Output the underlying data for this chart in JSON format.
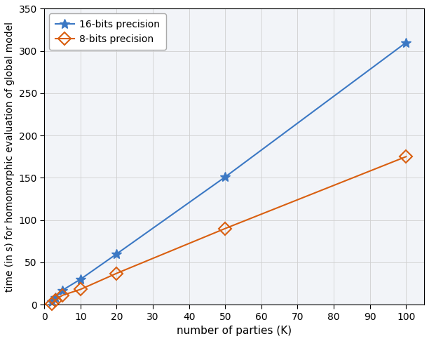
{
  "x": [
    2,
    3,
    5,
    10,
    20,
    50,
    100
  ],
  "y_16bit": [
    3,
    8,
    17,
    30,
    60,
    151,
    310
  ],
  "y_8bit": [
    1,
    5,
    11,
    18,
    37,
    90,
    175
  ],
  "line_color_16": "#3b78c4",
  "line_color_8": "#d95f10",
  "marker_16": "*",
  "marker_8": "D",
  "label_16": "16-bits precision",
  "label_8": "8-bits precision",
  "xlabel": "number of parties (K)",
  "ylabel": "time (in s) for homomorphic evaluation of global model",
  "xlim": [
    0,
    105
  ],
  "ylim": [
    0,
    350
  ],
  "xticks": [
    0,
    10,
    20,
    30,
    40,
    50,
    60,
    70,
    80,
    90,
    100
  ],
  "yticks": [
    0,
    50,
    100,
    150,
    200,
    250,
    300,
    350
  ],
  "linewidth": 1.5,
  "markersize_16": 10,
  "markersize_8": 9,
  "legend_loc": "upper left",
  "grid_color": "#d0d0d0",
  "background_color": "#f2f4f8",
  "fig_bg": "#ffffff"
}
